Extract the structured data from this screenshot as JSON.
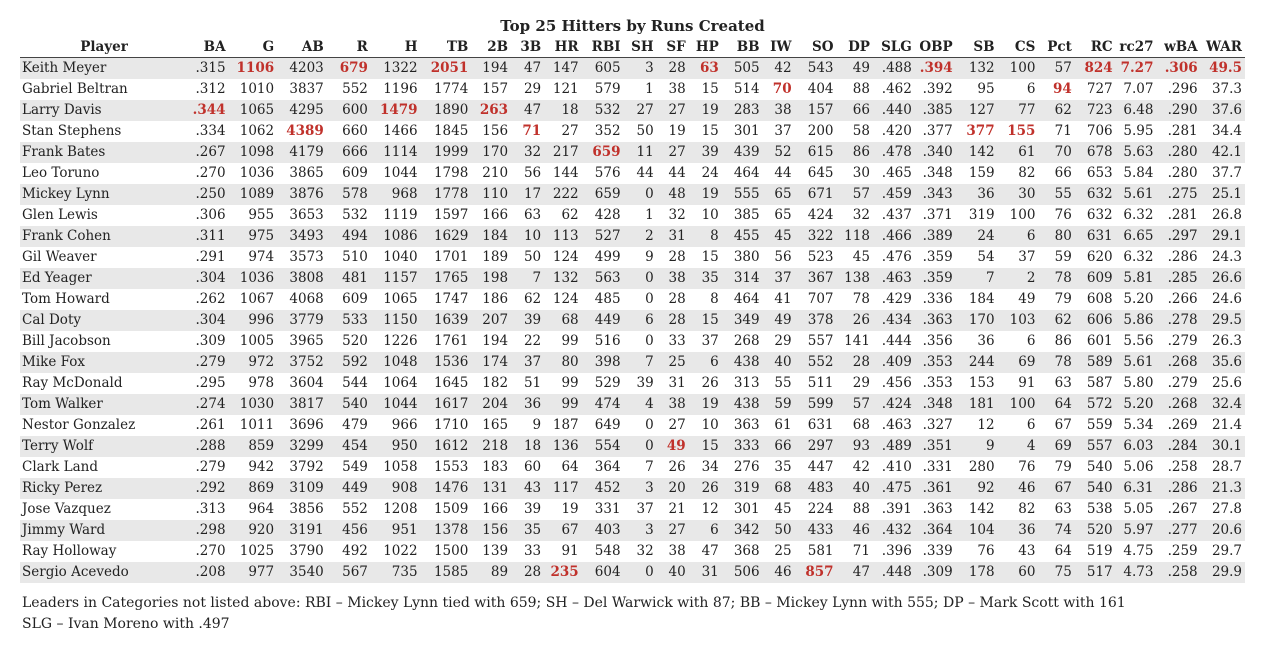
{
  "title": "Top 25 Hitters by Runs Created",
  "columns": [
    "Player",
    "BA",
    "G",
    "AB",
    "R",
    "H",
    "TB",
    "2B",
    "3B",
    "HR",
    "RBI",
    "SH",
    "SF",
    "HP",
    "BB",
    "IW",
    "SO",
    "DP",
    "SLG",
    "OBP",
    "SB",
    "CS",
    "Pct",
    "RC",
    "rc27",
    "wBA",
    "WAR"
  ],
  "column_widths": [
    155,
    34,
    44,
    45,
    40,
    45,
    46,
    36,
    30,
    34,
    38,
    30,
    29,
    30,
    37,
    29,
    38,
    33,
    38,
    37,
    38,
    37,
    33,
    37,
    37,
    40,
    40
  ],
  "rows": [
    {
      "cells": [
        "Keith Meyer",
        ".315",
        "1106",
        "4203",
        "679",
        "1322",
        "2051",
        "194",
        "47",
        "147",
        "605",
        "3",
        "28",
        "63",
        "505",
        "42",
        "543",
        "49",
        ".488",
        ".394",
        "132",
        "100",
        "57",
        "824",
        "7.27",
        ".306",
        "49.5"
      ],
      "leaders": [
        2,
        4,
        6,
        13,
        19,
        23,
        24,
        25,
        26
      ]
    },
    {
      "cells": [
        "Gabriel Beltran",
        ".312",
        "1010",
        "3837",
        "552",
        "1196",
        "1774",
        "157",
        "29",
        "121",
        "579",
        "1",
        "38",
        "15",
        "514",
        "70",
        "404",
        "88",
        ".462",
        ".392",
        "95",
        "6",
        "94",
        "727",
        "7.07",
        ".296",
        "37.3"
      ],
      "leaders": [
        15,
        22
      ]
    },
    {
      "cells": [
        "Larry Davis",
        ".344",
        "1065",
        "4295",
        "600",
        "1479",
        "1890",
        "263",
        "47",
        "18",
        "532",
        "27",
        "27",
        "19",
        "283",
        "38",
        "157",
        "66",
        ".440",
        ".385",
        "127",
        "77",
        "62",
        "723",
        "6.48",
        ".290",
        "37.6"
      ],
      "leaders": [
        1,
        5,
        7
      ]
    },
    {
      "cells": [
        "Stan Stephens",
        ".334",
        "1062",
        "4389",
        "660",
        "1466",
        "1845",
        "156",
        "71",
        "27",
        "352",
        "50",
        "19",
        "15",
        "301",
        "37",
        "200",
        "58",
        ".420",
        ".377",
        "377",
        "155",
        "71",
        "706",
        "5.95",
        ".281",
        "34.4"
      ],
      "leaders": [
        3,
        8,
        20,
        21
      ]
    },
    {
      "cells": [
        "Frank Bates",
        ".267",
        "1098",
        "4179",
        "666",
        "1114",
        "1999",
        "170",
        "32",
        "217",
        "659",
        "11",
        "27",
        "39",
        "439",
        "52",
        "615",
        "86",
        ".478",
        ".340",
        "142",
        "61",
        "70",
        "678",
        "5.63",
        ".280",
        "42.1"
      ],
      "leaders": [
        10
      ]
    },
    {
      "cells": [
        "Leo Toruno",
        ".270",
        "1036",
        "3865",
        "609",
        "1044",
        "1798",
        "210",
        "56",
        "144",
        "576",
        "44",
        "44",
        "24",
        "464",
        "44",
        "645",
        "30",
        ".465",
        ".348",
        "159",
        "82",
        "66",
        "653",
        "5.84",
        ".280",
        "37.7"
      ],
      "leaders": []
    },
    {
      "cells": [
        "Mickey Lynn",
        ".250",
        "1089",
        "3876",
        "578",
        "968",
        "1778",
        "110",
        "17",
        "222",
        "659",
        "0",
        "48",
        "19",
        "555",
        "65",
        "671",
        "57",
        ".459",
        ".343",
        "36",
        "30",
        "55",
        "632",
        "5.61",
        ".275",
        "25.1"
      ],
      "leaders": []
    },
    {
      "cells": [
        "Glen Lewis",
        ".306",
        "955",
        "3653",
        "532",
        "1119",
        "1597",
        "166",
        "63",
        "62",
        "428",
        "1",
        "32",
        "10",
        "385",
        "65",
        "424",
        "32",
        ".437",
        ".371",
        "319",
        "100",
        "76",
        "632",
        "6.32",
        ".281",
        "26.8"
      ],
      "leaders": []
    },
    {
      "cells": [
        "Frank Cohen",
        ".311",
        "975",
        "3493",
        "494",
        "1086",
        "1629",
        "184",
        "10",
        "113",
        "527",
        "2",
        "31",
        "8",
        "455",
        "45",
        "322",
        "118",
        ".466",
        ".389",
        "24",
        "6",
        "80",
        "631",
        "6.65",
        ".297",
        "29.1"
      ],
      "leaders": []
    },
    {
      "cells": [
        "Gil Weaver",
        ".291",
        "974",
        "3573",
        "510",
        "1040",
        "1701",
        "189",
        "50",
        "124",
        "499",
        "9",
        "28",
        "15",
        "380",
        "56",
        "523",
        "45",
        ".476",
        ".359",
        "54",
        "37",
        "59",
        "620",
        "6.32",
        ".286",
        "24.3"
      ],
      "leaders": []
    },
    {
      "cells": [
        "Ed Yeager",
        ".304",
        "1036",
        "3808",
        "481",
        "1157",
        "1765",
        "198",
        "7",
        "132",
        "563",
        "0",
        "38",
        "35",
        "314",
        "37",
        "367",
        "138",
        ".463",
        ".359",
        "7",
        "2",
        "78",
        "609",
        "5.81",
        ".285",
        "26.6"
      ],
      "leaders": []
    },
    {
      "cells": [
        "Tom Howard",
        ".262",
        "1067",
        "4068",
        "609",
        "1065",
        "1747",
        "186",
        "62",
        "124",
        "485",
        "0",
        "28",
        "8",
        "464",
        "41",
        "707",
        "78",
        ".429",
        ".336",
        "184",
        "49",
        "79",
        "608",
        "5.20",
        ".266",
        "24.6"
      ],
      "leaders": []
    },
    {
      "cells": [
        "Cal Doty",
        ".304",
        "996",
        "3779",
        "533",
        "1150",
        "1639",
        "207",
        "39",
        "68",
        "449",
        "6",
        "28",
        "15",
        "349",
        "49",
        "378",
        "26",
        ".434",
        ".363",
        "170",
        "103",
        "62",
        "606",
        "5.86",
        ".278",
        "29.5"
      ],
      "leaders": []
    },
    {
      "cells": [
        "Bill Jacobson",
        ".309",
        "1005",
        "3965",
        "520",
        "1226",
        "1761",
        "194",
        "22",
        "99",
        "516",
        "0",
        "33",
        "37",
        "268",
        "29",
        "557",
        "141",
        ".444",
        ".356",
        "36",
        "6",
        "86",
        "601",
        "5.56",
        ".279",
        "26.3"
      ],
      "leaders": []
    },
    {
      "cells": [
        "Mike Fox",
        ".279",
        "972",
        "3752",
        "592",
        "1048",
        "1536",
        "174",
        "37",
        "80",
        "398",
        "7",
        "25",
        "6",
        "438",
        "40",
        "552",
        "28",
        ".409",
        ".353",
        "244",
        "69",
        "78",
        "589",
        "5.61",
        ".268",
        "35.6"
      ],
      "leaders": []
    },
    {
      "cells": [
        "Ray McDonald",
        ".295",
        "978",
        "3604",
        "544",
        "1064",
        "1645",
        "182",
        "51",
        "99",
        "529",
        "39",
        "31",
        "26",
        "313",
        "55",
        "511",
        "29",
        ".456",
        ".353",
        "153",
        "91",
        "63",
        "587",
        "5.80",
        ".279",
        "25.6"
      ],
      "leaders": []
    },
    {
      "cells": [
        "Tom Walker",
        ".274",
        "1030",
        "3817",
        "540",
        "1044",
        "1617",
        "204",
        "36",
        "99",
        "474",
        "4",
        "38",
        "19",
        "438",
        "59",
        "599",
        "57",
        ".424",
        ".348",
        "181",
        "100",
        "64",
        "572",
        "5.20",
        ".268",
        "32.4"
      ],
      "leaders": []
    },
    {
      "cells": [
        "Nestor Gonzalez",
        ".261",
        "1011",
        "3696",
        "479",
        "966",
        "1710",
        "165",
        "9",
        "187",
        "649",
        "0",
        "27",
        "10",
        "363",
        "61",
        "631",
        "68",
        ".463",
        ".327",
        "12",
        "6",
        "67",
        "559",
        "5.34",
        ".269",
        "21.4"
      ],
      "leaders": []
    },
    {
      "cells": [
        "Terry Wolf",
        ".288",
        "859",
        "3299",
        "454",
        "950",
        "1612",
        "218",
        "18",
        "136",
        "554",
        "0",
        "49",
        "15",
        "333",
        "66",
        "297",
        "93",
        ".489",
        ".351",
        "9",
        "4",
        "69",
        "557",
        "6.03",
        ".284",
        "30.1"
      ],
      "leaders": [
        12
      ]
    },
    {
      "cells": [
        "Clark Land",
        ".279",
        "942",
        "3792",
        "549",
        "1058",
        "1553",
        "183",
        "60",
        "64",
        "364",
        "7",
        "26",
        "34",
        "276",
        "35",
        "447",
        "42",
        ".410",
        ".331",
        "280",
        "76",
        "79",
        "540",
        "5.06",
        ".258",
        "28.7"
      ],
      "leaders": []
    },
    {
      "cells": [
        "Ricky Perez",
        ".292",
        "869",
        "3109",
        "449",
        "908",
        "1476",
        "131",
        "43",
        "117",
        "452",
        "3",
        "20",
        "26",
        "319",
        "68",
        "483",
        "40",
        ".475",
        ".361",
        "92",
        "46",
        "67",
        "540",
        "6.31",
        ".286",
        "21.3"
      ],
      "leaders": []
    },
    {
      "cells": [
        "Jose Vazquez",
        ".313",
        "964",
        "3856",
        "552",
        "1208",
        "1509",
        "166",
        "39",
        "19",
        "331",
        "37",
        "21",
        "12",
        "301",
        "45",
        "224",
        "88",
        ".391",
        ".363",
        "142",
        "82",
        "63",
        "538",
        "5.05",
        ".267",
        "27.8"
      ],
      "leaders": []
    },
    {
      "cells": [
        "Jimmy Ward",
        ".298",
        "920",
        "3191",
        "456",
        "951",
        "1378",
        "156",
        "35",
        "67",
        "403",
        "3",
        "27",
        "6",
        "342",
        "50",
        "433",
        "46",
        ".432",
        ".364",
        "104",
        "36",
        "74",
        "520",
        "5.97",
        ".277",
        "20.6"
      ],
      "leaders": []
    },
    {
      "cells": [
        "Ray Holloway",
        ".270",
        "1025",
        "3790",
        "492",
        "1022",
        "1500",
        "139",
        "33",
        "91",
        "548",
        "32",
        "38",
        "47",
        "368",
        "25",
        "581",
        "71",
        ".396",
        ".339",
        "76",
        "43",
        "64",
        "519",
        "4.75",
        ".259",
        "29.7"
      ],
      "leaders": []
    },
    {
      "cells": [
        "Sergio Acevedo",
        ".208",
        "977",
        "3540",
        "567",
        "735",
        "1585",
        "89",
        "28",
        "235",
        "604",
        "0",
        "40",
        "31",
        "506",
        "46",
        "857",
        "47",
        ".448",
        ".309",
        "178",
        "60",
        "75",
        "517",
        "4.73",
        ".258",
        "29.9"
      ],
      "leaders": [
        9,
        16
      ]
    }
  ],
  "footer": {
    "line1": "Leaders in Categories not listed above: RBI – Mickey Lynn tied with 659; SH – Del Warwick with 87; BB – Mickey Lynn with 555; DP – Mark Scott with 161",
    "line2": "SLG – Ivan Moreno with .497"
  },
  "colors": {
    "leader": "#c0312b",
    "stripe": "#e8e8e8"
  }
}
